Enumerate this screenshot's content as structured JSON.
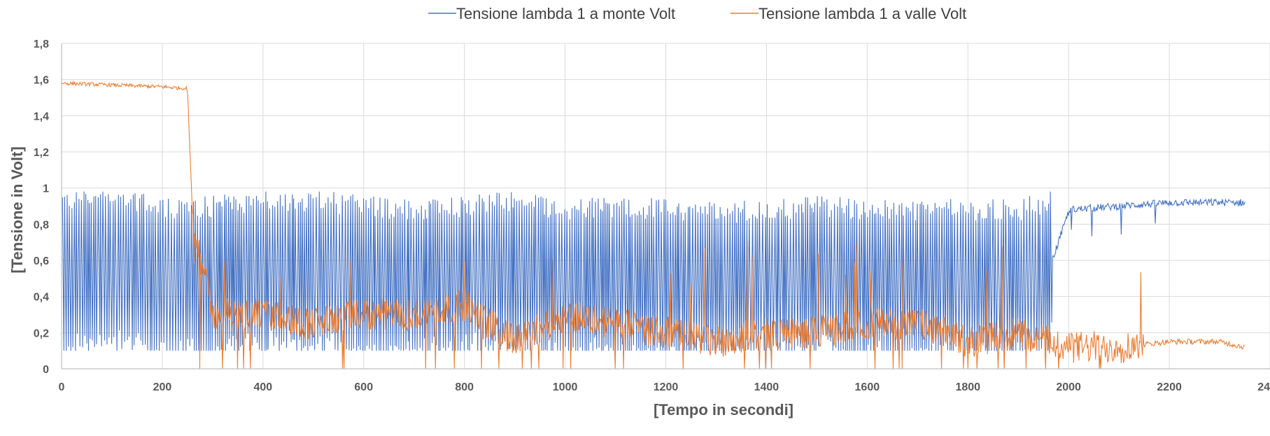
{
  "chart_data": {
    "type": "line",
    "title": "",
    "xlabel": "[Tempo in secondi]",
    "ylabel": "[Tensione in Volt]",
    "xlim": [
      0,
      2400
    ],
    "ylim": [
      0,
      1.8
    ],
    "x_ticks": [
      0,
      200,
      400,
      600,
      800,
      1000,
      1200,
      1400,
      1600,
      1800,
      2000,
      2200,
      2400
    ],
    "x_tick_labels": [
      "0",
      "200",
      "400",
      "600",
      "800",
      "1000",
      "1200",
      "1400",
      "1600",
      "1800",
      "2000",
      "2200",
      "2400"
    ],
    "y_ticks": [
      0,
      0.2,
      0.4,
      0.6,
      0.8,
      1,
      1.2,
      1.4,
      1.6,
      1.8
    ],
    "y_tick_labels": [
      "0",
      "0,2",
      "0,4",
      "0,6",
      "0,8",
      "1",
      "1,2",
      "1,4",
      "1,6",
      "1,8"
    ],
    "grid": true,
    "legend_position": "top-center",
    "series": [
      {
        "name": "Tensione lambda 1 a monte Volt",
        "color": "#4472C4",
        "x": [
          0,
          100,
          200,
          300,
          400,
          500,
          600,
          700,
          800,
          900,
          1000,
          1100,
          1200,
          1300,
          1400,
          1500,
          1600,
          1700,
          1800,
          1900,
          1960,
          2000,
          2100,
          2200,
          2300,
          2350
        ],
        "y": [
          0.55,
          0.58,
          0.5,
          0.52,
          0.55,
          0.55,
          0.52,
          0.5,
          0.52,
          0.55,
          0.5,
          0.52,
          0.5,
          0.48,
          0.5,
          0.52,
          0.5,
          0.5,
          0.5,
          0.5,
          0.55,
          0.88,
          0.9,
          0.92,
          0.92,
          0.92
        ]
      },
      {
        "name": "Tensione lambda 1 a valle Volt",
        "color": "#ED7D31",
        "x": [
          0,
          100,
          200,
          250,
          260,
          300,
          400,
          500,
          600,
          700,
          800,
          900,
          1000,
          1100,
          1200,
          1300,
          1400,
          1500,
          1600,
          1700,
          1800,
          1900,
          2000,
          2100,
          2200,
          2300,
          2350
        ],
        "y": [
          1.58,
          1.57,
          1.56,
          1.55,
          0.85,
          0.3,
          0.3,
          0.25,
          0.3,
          0.3,
          0.35,
          0.15,
          0.3,
          0.25,
          0.2,
          0.15,
          0.2,
          0.2,
          0.25,
          0.25,
          0.15,
          0.2,
          0.12,
          0.12,
          0.15,
          0.15,
          0.12
        ]
      }
    ]
  }
}
